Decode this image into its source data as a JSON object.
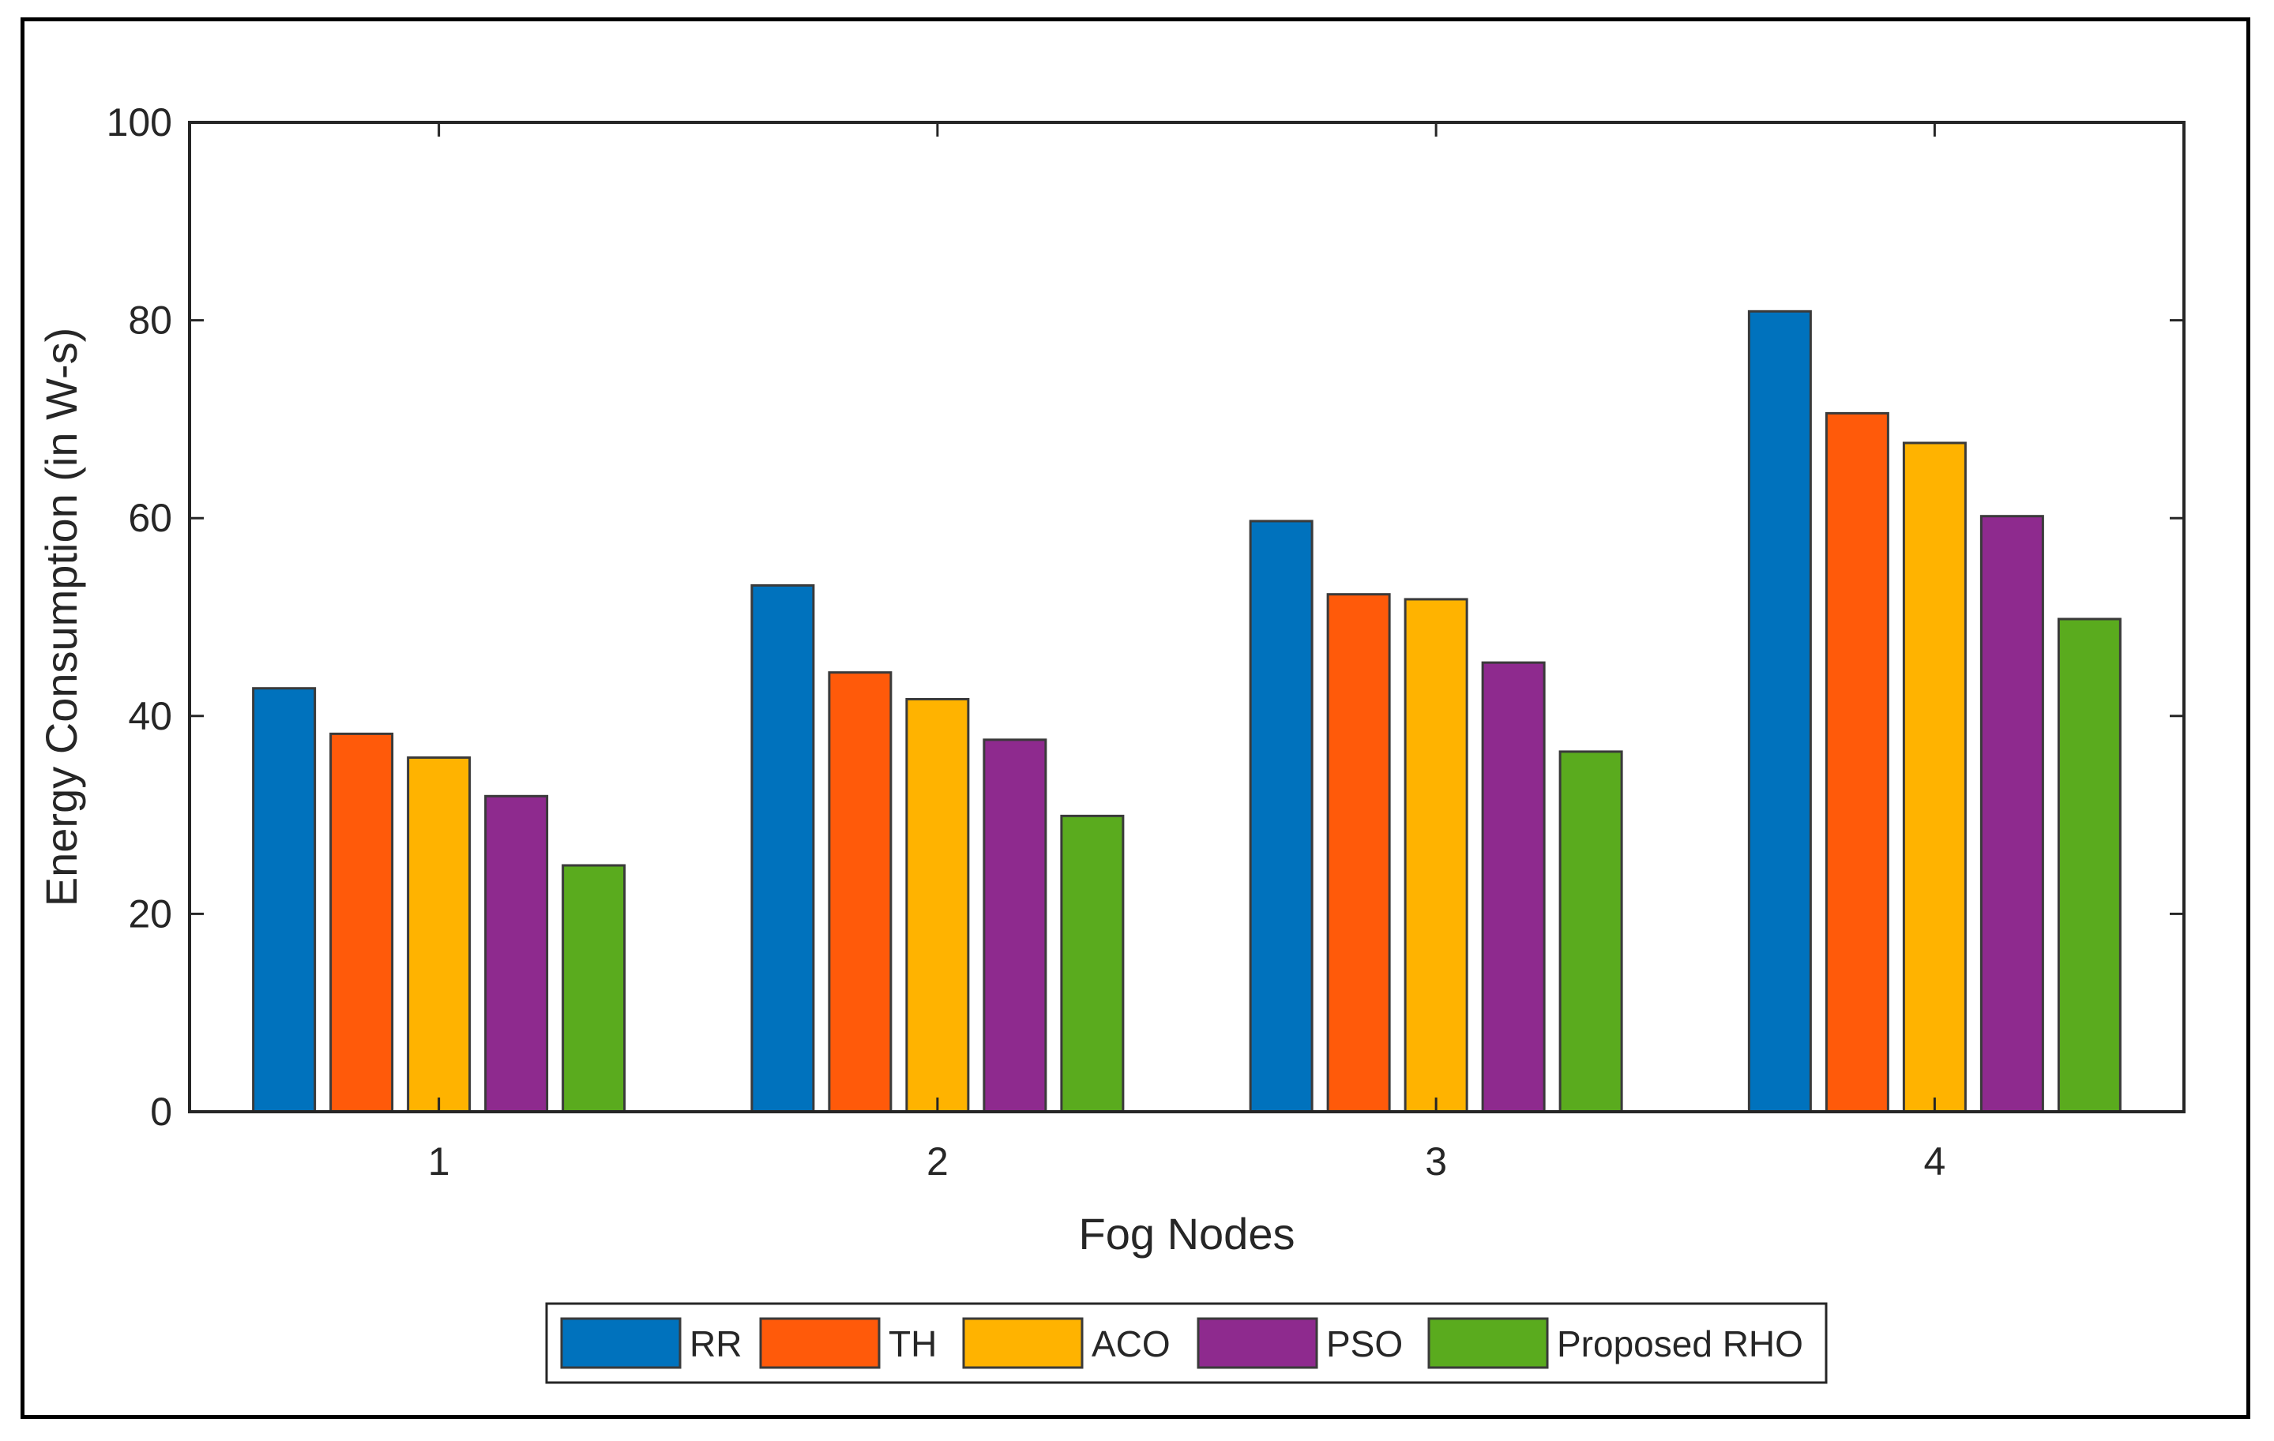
{
  "chart_data": {
    "type": "bar",
    "title": "",
    "xlabel": "Fog Nodes",
    "ylabel": "Energy Consumption (in W-s)",
    "categories": [
      "1",
      "2",
      "3",
      "4"
    ],
    "ylim": [
      0,
      100
    ],
    "yticks": [
      0,
      20,
      40,
      60,
      80,
      100
    ],
    "grid": false,
    "legend_position": "bottom",
    "series": [
      {
        "name": "RR",
        "color": "#0072BD",
        "values": [
          42.8,
          53.2,
          59.7,
          80.9
        ]
      },
      {
        "name": "TH",
        "color": "#FF5A0A",
        "values": [
          38.2,
          44.4,
          52.3,
          70.6
        ]
      },
      {
        "name": "ACO",
        "color": "#FFB300",
        "values": [
          35.8,
          41.7,
          51.8,
          67.6
        ]
      },
      {
        "name": "PSO",
        "color": "#8E2A8E",
        "values": [
          31.9,
          37.6,
          45.4,
          60.2
        ]
      },
      {
        "name": "Proposed RHO",
        "color": "#5AAB1E",
        "values": [
          24.9,
          29.9,
          36.4,
          49.8
        ]
      }
    ]
  }
}
